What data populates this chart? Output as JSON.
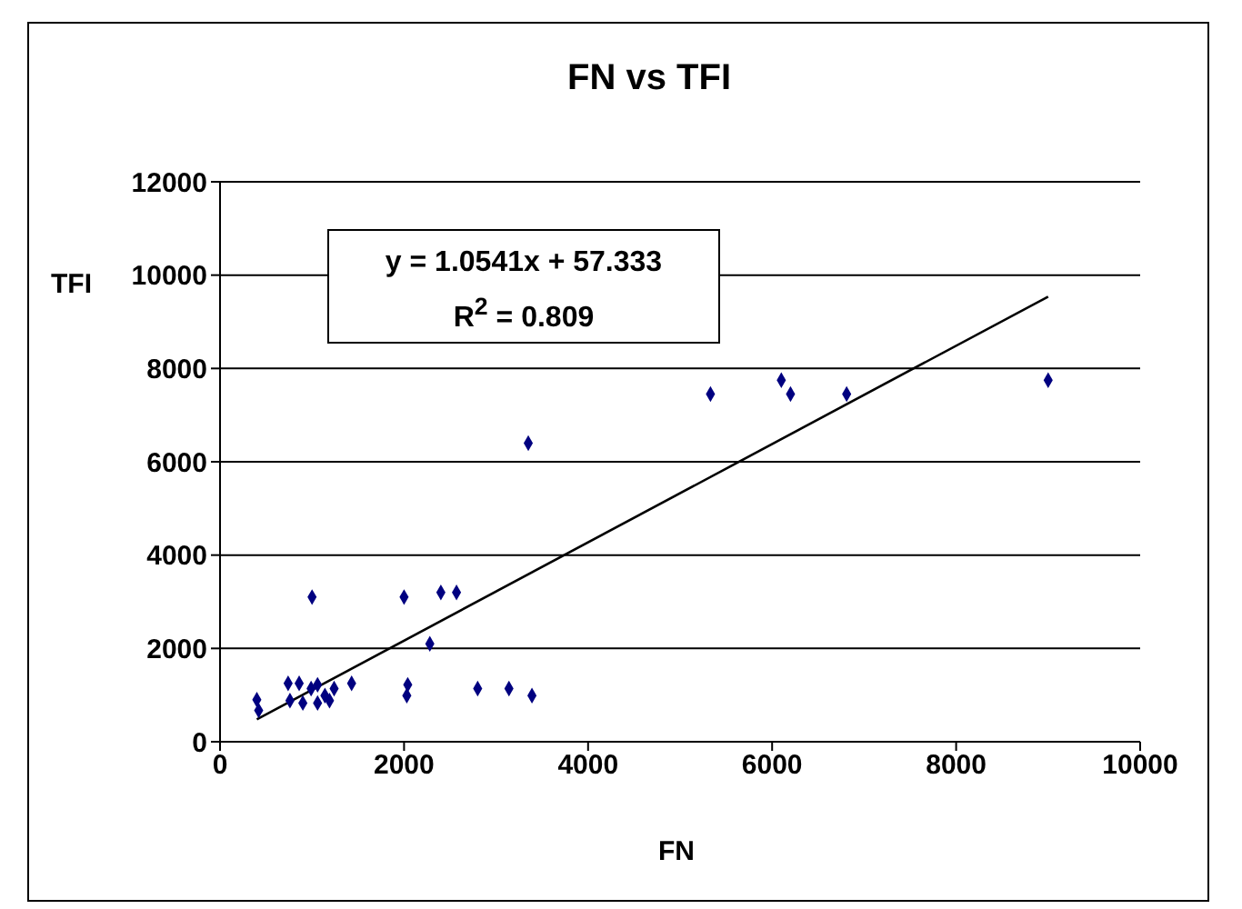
{
  "chart_data": {
    "type": "scatter",
    "title": "FN vs TFI",
    "xlabel": "FN",
    "ylabel": "TFI",
    "annotations": [
      "y = 1.0541x + 57.333",
      "R$^{2}$ = 0.809"
    ],
    "series": [
      {
        "color": "#000080",
        "x": [
          400,
          420,
          740,
          860,
          760,
          900,
          990,
          1060,
          1060,
          1140,
          1190,
          1240,
          1430,
          2030,
          2040,
          2280,
          2800,
          3140,
          3390,
          1000,
          2000,
          2400,
          2570,
          3350,
          5330,
          6100,
          6200,
          6810,
          9000
        ],
        "values": [
          900,
          670,
          1250,
          1250,
          880,
          830,
          1140,
          1220,
          830,
          990,
          880,
          1140,
          1250,
          990,
          1220,
          2100,
          1140,
          1140,
          990,
          3100,
          3100,
          3200,
          3200,
          6400,
          7450,
          7750,
          7450,
          7450,
          7750
        ]
      },
      {
        "type": "line",
        "color": "#000000",
        "marker": "none",
        "x": [
          400,
          9000
        ],
        "values": [
          480,
          9540
        ]
      }
    ],
    "xlim": [
      0,
      10000
    ],
    "xticks": [
      0,
      2000,
      4000,
      6000,
      8000,
      10000
    ],
    "ylim": [
      0,
      12000
    ],
    "yticks": [
      0,
      2000,
      4000,
      6000,
      8000,
      10000,
      12000
    ],
    "marker": "diamond",
    "grid": "y"
  }
}
